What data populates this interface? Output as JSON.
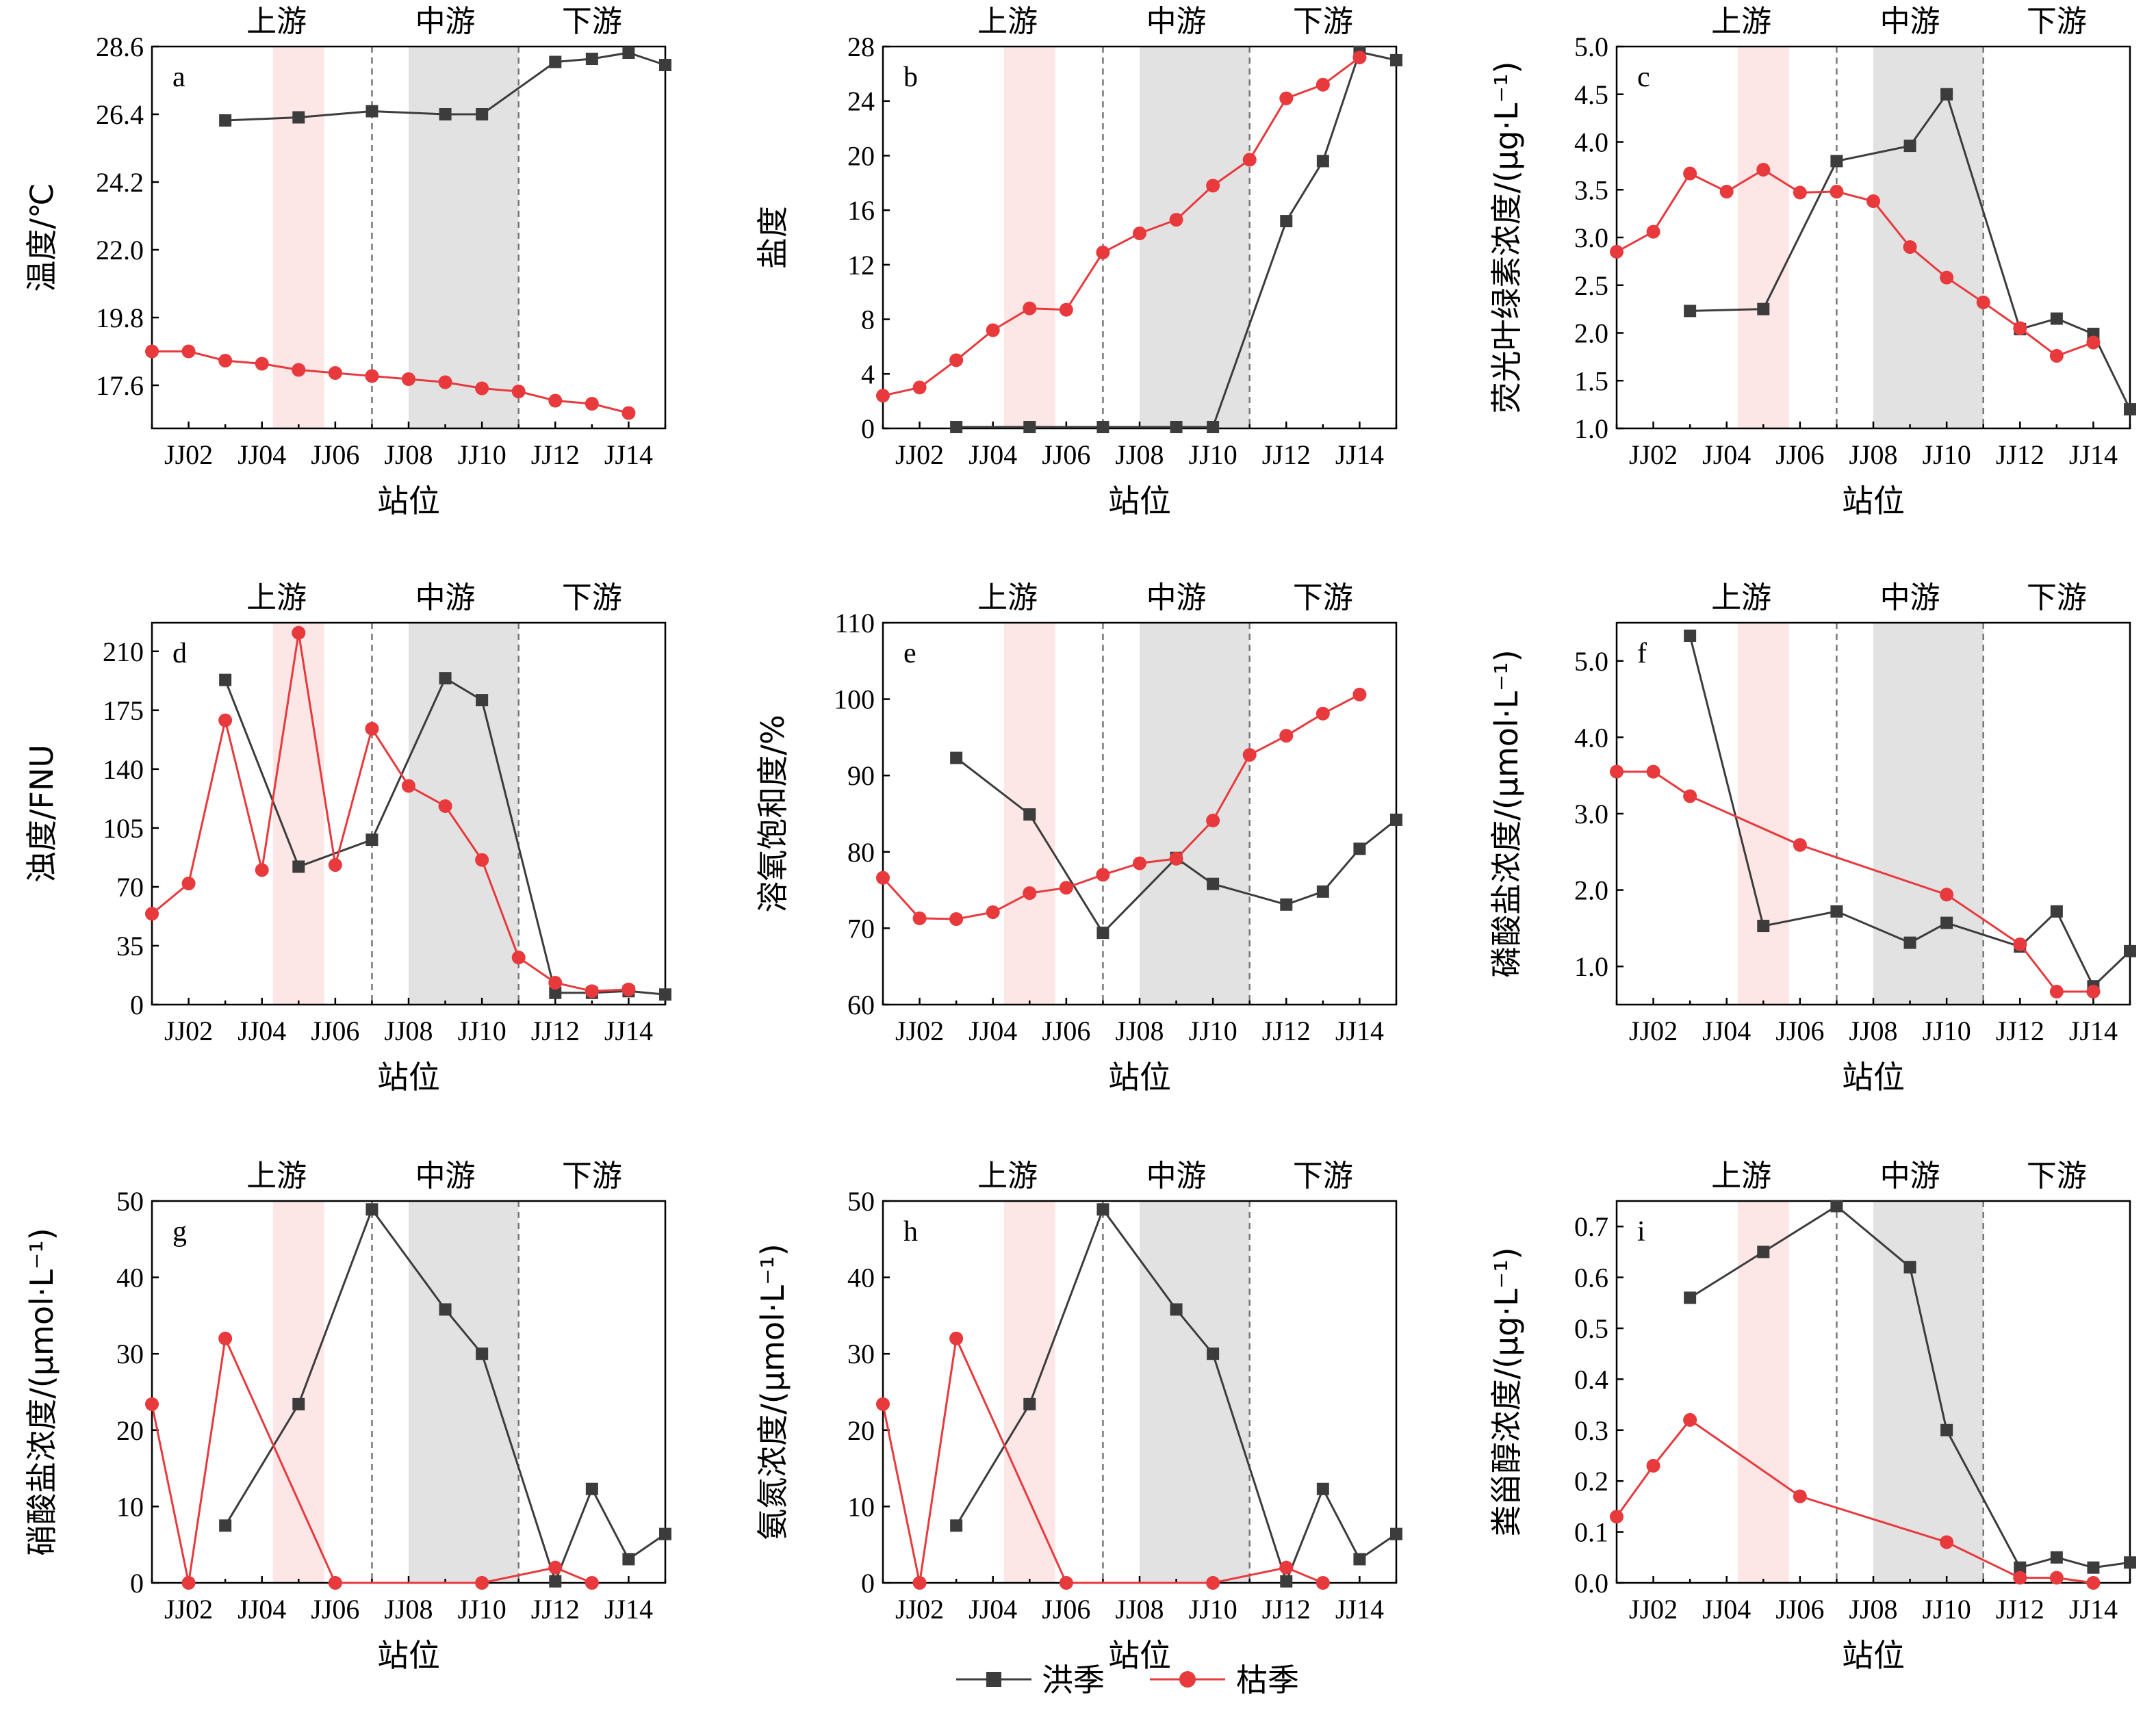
{
  "regions": {
    "upstream": "上游",
    "midstream": "中游",
    "downstream": "下游"
  },
  "xlabel": "站位",
  "x_tick_labels": [
    "JJ02",
    "JJ04",
    "JJ06",
    "JJ08",
    "JJ10",
    "JJ12",
    "JJ14"
  ],
  "legend": {
    "flood_label": "洪季",
    "dry_label": "枯季"
  },
  "colors": {
    "flood": "#3c3c3c",
    "dry": "#e8393d",
    "pink_band": "#fde6e6",
    "gray_band": "#e2e2e2"
  },
  "chart_data": [
    {
      "type": "line",
      "letter": "a",
      "ylabel": "温度/℃",
      "ylim": [
        16.2,
        28.6
      ],
      "yticks": [
        17.6,
        19.8,
        22.0,
        24.2,
        26.4,
        28.6
      ],
      "ytick_labels": [
        "17.6",
        "19.8",
        "22.0",
        "24.2",
        "26.4",
        "28.6"
      ],
      "series": [
        {
          "name": "洪季",
          "x": [
            3,
            5,
            7,
            9,
            10,
            12,
            13,
            14,
            15
          ],
          "y": [
            26.2,
            26.3,
            26.5,
            26.4,
            26.4,
            28.1,
            28.2,
            28.4,
            28.0
          ]
        },
        {
          "name": "枯季",
          "x": [
            1,
            2,
            3,
            4,
            5,
            6,
            7,
            8,
            9,
            10,
            11,
            12,
            13,
            14
          ],
          "y": [
            18.7,
            18.7,
            18.4,
            18.3,
            18.1,
            18.0,
            17.9,
            17.8,
            17.7,
            17.5,
            17.4,
            17.1,
            17.0,
            16.7
          ]
        }
      ]
    },
    {
      "type": "line",
      "letter": "b",
      "ylabel": "盐度",
      "ylim": [
        0,
        28
      ],
      "yticks": [
        0,
        4,
        8,
        12,
        16,
        20,
        24,
        28
      ],
      "ytick_labels": [
        "0",
        "4",
        "8",
        "12",
        "16",
        "20",
        "24",
        "28"
      ],
      "series": [
        {
          "name": "洪季",
          "x": [
            3,
            5,
            7,
            9,
            10,
            12,
            13,
            14,
            15
          ],
          "y": [
            0.1,
            0.1,
            0.1,
            0.1,
            0.1,
            15.2,
            19.6,
            27.6,
            27.0
          ]
        },
        {
          "name": "枯季",
          "x": [
            1,
            2,
            3,
            4,
            5,
            6,
            7,
            8,
            9,
            10,
            11,
            12,
            13,
            14
          ],
          "y": [
            2.4,
            3.0,
            5.0,
            7.2,
            8.8,
            8.7,
            12.9,
            14.3,
            15.3,
            17.8,
            19.7,
            24.2,
            25.2,
            27.2
          ]
        }
      ]
    },
    {
      "type": "line",
      "letter": "c",
      "ylabel": "荧光叶绿素浓度/(μg·L⁻¹)",
      "ylim": [
        1.0,
        5.0
      ],
      "yticks": [
        1.0,
        1.5,
        2.0,
        2.5,
        3.0,
        3.5,
        4.0,
        4.5,
        5.0
      ],
      "ytick_labels": [
        "1.0",
        "1.5",
        "2.0",
        "2.5",
        "3.0",
        "3.5",
        "4.0",
        "4.5",
        "5.0"
      ],
      "series": [
        {
          "name": "洪季",
          "x": [
            3,
            5,
            7,
            9,
            10,
            12,
            13,
            14,
            15
          ],
          "y": [
            2.23,
            2.25,
            3.8,
            3.96,
            4.5,
            2.04,
            2.15,
            1.99,
            1.2
          ]
        },
        {
          "name": "枯季",
          "x": [
            1,
            2,
            3,
            4,
            5,
            6,
            7,
            8,
            9,
            10,
            11,
            12,
            13,
            14
          ],
          "y": [
            2.85,
            3.06,
            3.67,
            3.48,
            3.71,
            3.47,
            3.48,
            3.38,
            2.9,
            2.58,
            2.32,
            2.05,
            1.76,
            1.9
          ]
        }
      ]
    },
    {
      "type": "line",
      "letter": "d",
      "ylabel": "浊度/FNU",
      "ylim": [
        0,
        227
      ],
      "yticks": [
        0,
        35,
        70,
        105,
        140,
        175,
        210
      ],
      "ytick_labels": [
        "0",
        "35",
        "70",
        "105",
        "140",
        "175",
        "210"
      ],
      "series": [
        {
          "name": "洪季",
          "x": [
            3,
            5,
            7,
            9,
            10,
            12,
            13,
            14,
            15
          ],
          "y": [
            193,
            82,
            98,
            194,
            181,
            7,
            7,
            8,
            6
          ]
        },
        {
          "name": "枯季",
          "x": [
            1,
            2,
            3,
            4,
            5,
            6,
            7,
            8,
            9,
            10,
            11,
            12,
            13,
            14
          ],
          "y": [
            54,
            72,
            169,
            80,
            221,
            83,
            164,
            130,
            118,
            86,
            28,
            13,
            8,
            9
          ]
        }
      ]
    },
    {
      "type": "line",
      "letter": "e",
      "ylabel": "溶氧饱和度/%",
      "ylim": [
        60,
        110
      ],
      "yticks": [
        60,
        70,
        80,
        90,
        100,
        110
      ],
      "ytick_labels": [
        "60",
        "70",
        "80",
        "90",
        "100",
        "110"
      ],
      "series": [
        {
          "name": "洪季",
          "x": [
            3,
            5,
            7,
            9,
            10,
            12,
            13,
            14,
            15
          ],
          "y": [
            92.3,
            84.9,
            69.4,
            79.2,
            75.8,
            73.1,
            74.8,
            80.4,
            84.2
          ]
        },
        {
          "name": "枯季",
          "x": [
            1,
            2,
            3,
            4,
            5,
            6,
            7,
            8,
            9,
            10,
            11,
            12,
            13,
            14
          ],
          "y": [
            76.6,
            71.3,
            71.2,
            72.1,
            74.6,
            75.3,
            77.0,
            78.5,
            79.1,
            84.1,
            92.7,
            95.2,
            98.1,
            100.6
          ]
        }
      ]
    },
    {
      "type": "line",
      "letter": "f",
      "ylabel": "磷酸盐浓度/(μmol·L⁻¹)",
      "ylim": [
        0.5,
        5.5
      ],
      "yticks": [
        1.0,
        2.0,
        3.0,
        4.0,
        5.0
      ],
      "ytick_labels": [
        "1.0",
        "2.0",
        "3.0",
        "4.0",
        "5.0"
      ],
      "series": [
        {
          "name": "洪季",
          "x": [
            3,
            5,
            7,
            9,
            10,
            12,
            13,
            14,
            15
          ],
          "y": [
            5.33,
            1.53,
            1.72,
            1.31,
            1.57,
            1.26,
            1.72,
            0.74,
            1.2
          ]
        },
        {
          "name": "枯季",
          "x": [
            1,
            2,
            3,
            6,
            10,
            12,
            13,
            14
          ],
          "y": [
            3.55,
            3.55,
            3.23,
            2.59,
            1.94,
            1.29,
            0.67,
            0.67
          ]
        }
      ]
    },
    {
      "type": "line",
      "letter": "g",
      "ylabel": "硝酸盐浓度/(μmol·L⁻¹)",
      "ylim": [
        0,
        50
      ],
      "yticks": [
        0,
        10,
        20,
        30,
        40,
        50
      ],
      "ytick_labels": [
        "0",
        "10",
        "20",
        "30",
        "40",
        "50"
      ],
      "series": [
        {
          "name": "洪季",
          "x": [
            3,
            5,
            7,
            9,
            10,
            12,
            13,
            14,
            15
          ],
          "y": [
            7.5,
            23.4,
            48.9,
            35.8,
            30.0,
            0.2,
            12.3,
            3.1,
            6.4
          ]
        },
        {
          "name": "枯季",
          "x": [
            1,
            2,
            3,
            6,
            10,
            12,
            13
          ],
          "y": [
            23.4,
            0,
            32.0,
            0,
            0,
            2.0,
            0
          ]
        }
      ]
    },
    {
      "type": "line",
      "letter": "h",
      "ylabel": "氨氮浓度/(μmol·L⁻¹)",
      "ylim": [
        0,
        50
      ],
      "yticks": [
        0,
        10,
        20,
        30,
        40,
        50
      ],
      "ytick_labels": [
        "0",
        "10",
        "20",
        "30",
        "40",
        "50"
      ],
      "series": [
        {
          "name": "洪季",
          "x": [
            3,
            5,
            7,
            9,
            10,
            12,
            13,
            14,
            15
          ],
          "y": [
            7.5,
            23.4,
            48.9,
            35.8,
            30.0,
            0.2,
            12.3,
            3.1,
            6.4
          ]
        },
        {
          "name": "枯季",
          "x": [
            1,
            2,
            3,
            6,
            10,
            12,
            13
          ],
          "y": [
            23.4,
            0,
            32.0,
            0,
            0,
            2.0,
            0
          ]
        }
      ]
    },
    {
      "type": "line",
      "letter": "i",
      "ylabel": "粪甾醇浓度/(μg·L⁻¹)",
      "ylim": [
        0,
        0.75
      ],
      "yticks": [
        0,
        0.1,
        0.2,
        0.3,
        0.4,
        0.5,
        0.6,
        0.7
      ],
      "ytick_labels": [
        "0.0",
        "0.1",
        "0.2",
        "0.3",
        "0.4",
        "0.5",
        "0.6",
        "0.7"
      ],
      "series": [
        {
          "name": "洪季",
          "x": [
            3,
            5,
            7,
            9,
            10,
            12,
            13,
            14,
            15
          ],
          "y": [
            0.56,
            0.65,
            0.74,
            0.62,
            0.3,
            0.03,
            0.05,
            0.03,
            0.04
          ]
        },
        {
          "name": "枯季",
          "x": [
            1,
            2,
            3,
            6,
            10,
            12,
            13,
            14
          ],
          "y": [
            0.13,
            0.23,
            0.32,
            0.17,
            0.08,
            0.01,
            0.01,
            0.0
          ]
        }
      ]
    }
  ]
}
